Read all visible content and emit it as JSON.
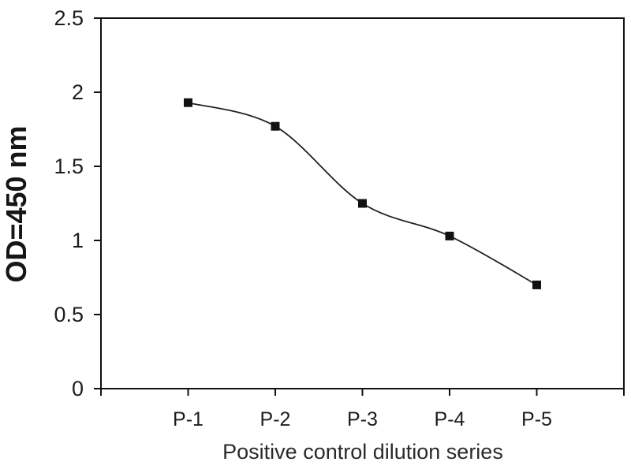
{
  "chart_data": {
    "type": "line",
    "title": "",
    "xlabel": "Positive control dilution series",
    "ylabel": "OD=450 nm",
    "categories": [
      "P-1",
      "P-2",
      "P-3",
      "P-4",
      "P-5"
    ],
    "values": [
      1.93,
      1.77,
      1.25,
      1.03,
      0.7
    ],
    "ylim": [
      0,
      2.5
    ],
    "yticks": [
      0,
      0.5,
      1,
      1.5,
      2,
      2.5
    ],
    "ytick_labels": [
      "0",
      "0.5",
      "1",
      "1.5",
      "2",
      "2.5"
    ],
    "marker": "square",
    "line_smooth": true,
    "grid": false,
    "legend": "none",
    "colors": {
      "line": "#222222",
      "marker": "#111111",
      "axis": "#111111",
      "text": "#1d1d1d",
      "background": "#ffffff"
    }
  }
}
